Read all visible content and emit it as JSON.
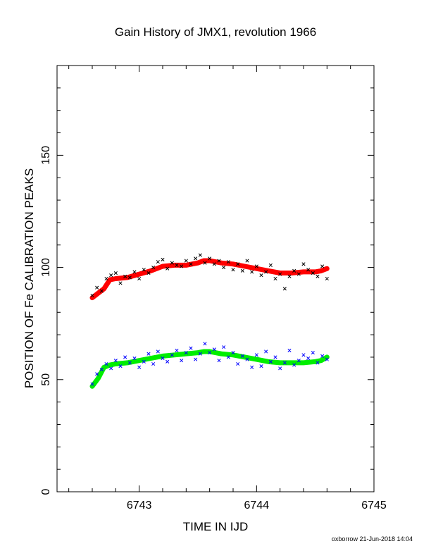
{
  "chart_data": {
    "type": "scatter",
    "title": "Gain History of JMX1, revolution 1966",
    "xlabel": "TIME IN IJD",
    "ylabel": "POSITION OF Fe CALIBRATION PEAKS",
    "xlim": [
      6742.3,
      6745.0
    ],
    "ylim": [
      0,
      190
    ],
    "x_ticks": [
      6743,
      6744,
      6745
    ],
    "y_ticks": [
      0,
      50,
      100,
      150
    ],
    "grid": false,
    "series": [
      {
        "color": "#ff0000",
        "style": "thick-line",
        "x": [
          6742.6,
          6742.65,
          6742.7,
          6742.75,
          6742.8,
          6742.9,
          6743.0,
          6743.1,
          6743.2,
          6743.3,
          6743.4,
          6743.5,
          6743.55,
          6743.6,
          6743.7,
          6743.8,
          6743.9,
          6744.0,
          6744.1,
          6744.2,
          6744.3,
          6744.4,
          6744.5,
          6744.55,
          6744.6
        ],
        "y": [
          86.5,
          88.5,
          90.5,
          94.5,
          95.0,
          95.5,
          97.0,
          98.5,
          100.5,
          101.0,
          101.0,
          102.0,
          103.0,
          103.0,
          102.0,
          101.5,
          100.5,
          99.5,
          98.5,
          97.5,
          97.5,
          98.0,
          98.0,
          98.5,
          99.5
        ]
      },
      {
        "color": "#00ee00",
        "style": "thick-line",
        "x": [
          6742.6,
          6742.65,
          6742.7,
          6742.75,
          6742.8,
          6742.9,
          6743.0,
          6743.1,
          6743.2,
          6743.3,
          6743.4,
          6743.5,
          6743.55,
          6743.6,
          6743.7,
          6743.8,
          6743.9,
          6744.0,
          6744.1,
          6744.2,
          6744.3,
          6744.4,
          6744.5,
          6744.55,
          6744.6
        ],
        "y": [
          47.0,
          50.5,
          55.5,
          56.5,
          57.0,
          57.5,
          58.5,
          59.5,
          60.5,
          61.0,
          61.5,
          62.0,
          62.5,
          62.5,
          61.5,
          61.0,
          60.0,
          59.0,
          58.0,
          57.5,
          57.5,
          57.5,
          58.0,
          58.5,
          60.0
        ]
      },
      {
        "color": "#000000",
        "style": "cross-markers",
        "x": [
          6742.6,
          6742.64,
          6742.68,
          6742.72,
          6742.76,
          6742.8,
          6742.84,
          6742.88,
          6742.92,
          6742.96,
          6743.0,
          6743.04,
          6743.08,
          6743.12,
          6743.16,
          6743.2,
          6743.24,
          6743.28,
          6743.32,
          6743.36,
          6743.4,
          6743.44,
          6743.48,
          6743.52,
          6743.56,
          6743.6,
          6743.64,
          6743.68,
          6743.72,
          6743.76,
          6743.8,
          6743.84,
          6743.88,
          6743.92,
          6743.96,
          6744.0,
          6744.04,
          6744.08,
          6744.12,
          6744.16,
          6744.2,
          6744.24,
          6744.28,
          6744.32,
          6744.36,
          6744.4,
          6744.44,
          6744.48,
          6744.52,
          6744.56,
          6744.6
        ],
        "y": [
          87.5,
          91.0,
          89.5,
          95.0,
          96.5,
          97.5,
          93.0,
          96.0,
          95.5,
          98.0,
          95.0,
          99.0,
          97.5,
          100.0,
          102.5,
          103.5,
          99.5,
          102.0,
          101.0,
          100.5,
          103.0,
          101.5,
          104.0,
          105.5,
          102.0,
          104.0,
          101.5,
          103.0,
          100.0,
          102.5,
          99.0,
          101.5,
          98.5,
          103.0,
          98.0,
          100.5,
          96.5,
          98.0,
          101.0,
          95.0,
          97.0,
          90.5,
          96.0,
          98.5,
          97.0,
          101.5,
          99.0,
          97.5,
          96.0,
          100.5,
          95.0
        ]
      },
      {
        "color": "#0000ff",
        "style": "cross-markers",
        "x": [
          6742.6,
          6742.64,
          6742.68,
          6742.72,
          6742.76,
          6742.8,
          6742.84,
          6742.88,
          6742.92,
          6742.96,
          6743.0,
          6743.04,
          6743.08,
          6743.12,
          6743.16,
          6743.2,
          6743.24,
          6743.28,
          6743.32,
          6743.36,
          6743.4,
          6743.44,
          6743.48,
          6743.52,
          6743.56,
          6743.6,
          6743.64,
          6743.68,
          6743.72,
          6743.76,
          6743.8,
          6743.84,
          6743.88,
          6743.92,
          6743.96,
          6744.0,
          6744.04,
          6744.08,
          6744.12,
          6744.16,
          6744.2,
          6744.24,
          6744.28,
          6744.32,
          6744.36,
          6744.4,
          6744.44,
          6744.48,
          6744.52,
          6744.56,
          6744.6
        ],
        "y": [
          48.0,
          52.5,
          54.5,
          57.0,
          55.0,
          58.5,
          56.0,
          60.0,
          57.5,
          59.5,
          55.5,
          58.0,
          61.5,
          57.0,
          62.5,
          59.5,
          58.0,
          61.0,
          63.0,
          58.5,
          62.0,
          64.0,
          59.0,
          61.5,
          66.0,
          62.0,
          63.5,
          58.5,
          64.5,
          60.0,
          62.0,
          57.0,
          60.5,
          59.0,
          55.5,
          61.0,
          56.0,
          62.5,
          58.0,
          60.0,
          55.0,
          57.5,
          63.0,
          56.5,
          58.5,
          61.0,
          59.5,
          62.0,
          57.5,
          60.5,
          59.0
        ]
      }
    ]
  },
  "footer": "oxborrow 21-Jun-2018 14:04"
}
